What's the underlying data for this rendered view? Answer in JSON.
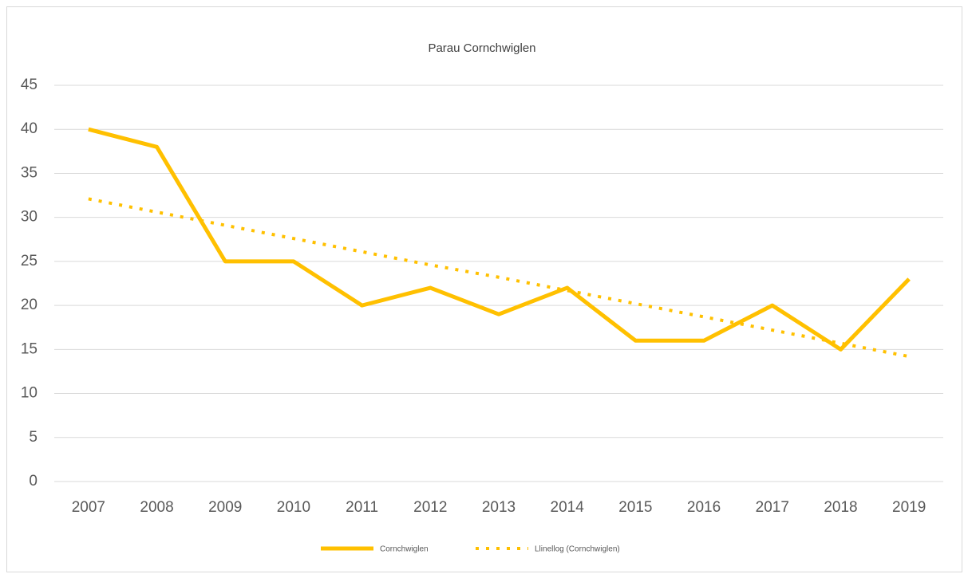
{
  "chart_data": {
    "type": "line",
    "title": "Parau Cornchwiglen",
    "categories": [
      "2007",
      "2008",
      "2009",
      "2010",
      "2011",
      "2012",
      "2013",
      "2014",
      "2015",
      "2016",
      "2017",
      "2018",
      "2019"
    ],
    "series": [
      {
        "name": "Cornchwiglen",
        "color": "#ffc000",
        "line_style": "solid",
        "values": [
          40,
          38,
          25,
          25,
          20,
          22,
          19,
          22,
          16,
          16,
          20,
          15,
          23
        ]
      },
      {
        "name": "Llinellog (Cornchwiglen)",
        "color": "#ffc000",
        "line_style": "dotted",
        "values": [
          32.1,
          30.6,
          29.1,
          27.6,
          26.1,
          24.6,
          23.2,
          21.7,
          20.2,
          18.7,
          17.2,
          15.7,
          14.2
        ]
      }
    ],
    "ylim": [
      0,
      45
    ],
    "yticks": [
      0,
      5,
      10,
      15,
      20,
      25,
      30,
      35,
      40,
      45
    ],
    "grid": true,
    "legend": "bottom"
  }
}
